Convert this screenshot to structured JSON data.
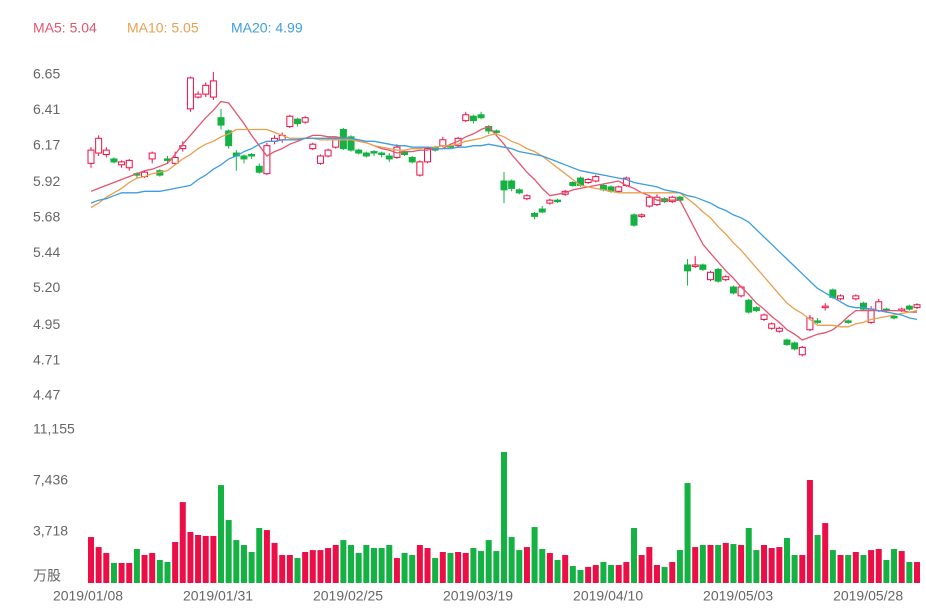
{
  "chart_data": {
    "type": "candlestick",
    "up_color": "#ec0f47",
    "down_color": "#14b143",
    "categories": [
      "2019/01/08",
      null,
      null,
      null,
      null,
      null,
      null,
      null,
      null,
      null,
      null,
      null,
      null,
      null,
      null,
      null,
      null,
      "2019/01/31",
      null,
      null,
      null,
      null,
      null,
      null,
      null,
      null,
      null,
      null,
      null,
      null,
      null,
      null,
      null,
      null,
      "2019/02/25",
      null,
      null,
      null,
      null,
      null,
      null,
      null,
      null,
      null,
      null,
      null,
      null,
      null,
      null,
      null,
      null,
      "2019/03/19",
      null,
      null,
      null,
      null,
      null,
      null,
      null,
      null,
      null,
      null,
      null,
      null,
      null,
      null,
      null,
      null,
      "2019/04/10",
      null,
      null,
      null,
      null,
      null,
      null,
      null,
      null,
      null,
      null,
      null,
      null,
      null,
      null,
      null,
      null,
      "2019/05/03",
      null,
      null,
      null,
      null,
      null,
      null,
      null,
      null,
      null,
      null,
      null,
      null,
      null,
      null,
      null,
      null,
      "2019/05/28",
      null,
      null,
      null,
      null,
      null,
      null
    ],
    "open": [
      6.05,
      6.12,
      6.11,
      6.08,
      6.04,
      6.02,
      5.98,
      5.96,
      6.08,
      6.0,
      6.08,
      6.05,
      6.15,
      6.42,
      6.5,
      6.52,
      6.5,
      6.36,
      6.27,
      6.12,
      6.1,
      6.11,
      6.03,
      5.98,
      6.2,
      6.21,
      6.3,
      6.35,
      6.33,
      6.15,
      6.05,
      6.1,
      6.16,
      6.28,
      6.23,
      6.14,
      6.12,
      6.13,
      6.12,
      6.1,
      6.09,
      6.13,
      6.09,
      5.97,
      6.06,
      6.16,
      6.17,
      6.17,
      6.17,
      6.34,
      6.37,
      6.38,
      6.3,
      6.27,
      5.93,
      5.93,
      5.87,
      5.81,
      5.71,
      5.74,
      5.78,
      5.8,
      5.84,
      5.92,
      5.95,
      5.92,
      5.93,
      5.9,
      5.89,
      5.86,
      5.9,
      5.7,
      5.69,
      5.76,
      5.77,
      5.81,
      5.79,
      5.82,
      5.36,
      5.35,
      5.36,
      5.26,
      5.33,
      5.26,
      5.21,
      5.15,
      5.12,
      5.07,
      4.99,
      4.93,
      4.91,
      4.85,
      4.83,
      4.75,
      4.92,
      4.98,
      5.07,
      5.19,
      5.13,
      4.98,
      5.13,
      5.1,
      4.97,
      5.05,
      5.06,
      5.01,
      5.05,
      5.08,
      5.07
    ],
    "high": [
      6.16,
      6.24,
      6.16,
      6.09,
      6.07,
      6.08,
      5.99,
      6.0,
      6.13,
      6.01,
      6.1,
      6.13,
      6.2,
      6.64,
      6.54,
      6.6,
      6.67,
      6.42,
      6.28,
      6.14,
      6.11,
      6.12,
      6.05,
      6.19,
      6.24,
      6.26,
      6.38,
      6.36,
      6.37,
      6.19,
      6.11,
      6.15,
      6.22,
      6.29,
      6.24,
      6.15,
      6.13,
      6.14,
      6.13,
      6.12,
      6.18,
      6.14,
      6.1,
      6.07,
      6.16,
      6.17,
      6.23,
      6.18,
      6.23,
      6.4,
      6.38,
      6.4,
      6.31,
      6.28,
      5.99,
      5.94,
      5.88,
      5.84,
      5.72,
      5.76,
      5.81,
      5.81,
      5.87,
      5.93,
      5.96,
      5.95,
      5.97,
      5.91,
      5.9,
      5.9,
      5.96,
      5.71,
      5.71,
      5.83,
      5.84,
      5.82,
      5.83,
      5.83,
      5.4,
      5.42,
      5.37,
      5.32,
      5.34,
      5.29,
      5.22,
      5.22,
      5.13,
      5.08,
      5.03,
      4.97,
      4.94,
      4.86,
      4.84,
      4.81,
      5.02,
      5.0,
      5.1,
      5.2,
      5.16,
      4.99,
      5.16,
      5.11,
      5.08,
      5.13,
      5.07,
      5.02,
      5.07,
      5.09,
      5.1
    ],
    "low": [
      6.02,
      6.1,
      6.09,
      6.05,
      6.02,
      6.0,
      5.95,
      5.95,
      6.05,
      5.96,
      6.05,
      6.04,
      6.13,
      6.4,
      6.49,
      6.5,
      6.48,
      6.28,
      6.15,
      6.0,
      6.05,
      6.08,
      5.98,
      5.97,
      6.18,
      6.19,
      6.29,
      6.3,
      6.32,
      6.14,
      6.04,
      6.09,
      6.15,
      6.14,
      6.13,
      6.11,
      6.09,
      6.1,
      6.09,
      6.06,
      6.08,
      6.1,
      6.05,
      5.96,
      6.05,
      6.13,
      6.16,
      6.15,
      6.16,
      6.33,
      6.32,
      6.35,
      6.25,
      6.25,
      5.78,
      5.86,
      5.84,
      5.8,
      5.67,
      5.71,
      5.77,
      5.78,
      5.83,
      5.89,
      5.89,
      5.91,
      5.92,
      5.86,
      5.85,
      5.85,
      5.89,
      5.62,
      5.68,
      5.75,
      5.76,
      5.78,
      5.78,
      5.79,
      5.22,
      5.34,
      5.32,
      5.25,
      5.24,
      5.25,
      5.16,
      5.14,
      5.03,
      5.04,
      4.98,
      4.92,
      4.9,
      4.81,
      4.78,
      4.74,
      4.91,
      4.96,
      5.05,
      5.13,
      5.12,
      4.96,
      5.12,
      5.05,
      4.96,
      5.04,
      5.04,
      4.99,
      5.04,
      5.05,
      5.06
    ],
    "close": [
      6.14,
      6.22,
      6.14,
      6.06,
      6.06,
      6.07,
      5.97,
      5.99,
      6.12,
      5.97,
      6.07,
      6.09,
      6.17,
      6.63,
      6.52,
      6.58,
      6.61,
      6.31,
      6.17,
      6.1,
      6.08,
      6.1,
      5.99,
      6.17,
      6.22,
      6.24,
      6.37,
      6.32,
      6.36,
      6.18,
      6.1,
      6.14,
      6.21,
      6.15,
      6.14,
      6.12,
      6.1,
      6.12,
      6.11,
      6.08,
      6.16,
      6.11,
      6.06,
      6.06,
      6.15,
      6.14,
      6.21,
      6.16,
      6.22,
      6.38,
      6.34,
      6.36,
      6.27,
      6.26,
      5.87,
      5.88,
      5.85,
      5.83,
      5.69,
      5.72,
      5.8,
      5.79,
      5.86,
      5.9,
      5.9,
      5.94,
      5.96,
      5.87,
      5.86,
      5.89,
      5.95,
      5.63,
      5.7,
      5.82,
      5.82,
      5.79,
      5.82,
      5.8,
      5.32,
      5.36,
      5.33,
      5.31,
      5.25,
      5.28,
      5.17,
      5.21,
      5.04,
      5.05,
      5.02,
      4.96,
      4.93,
      4.82,
      4.79,
      4.8,
      5.0,
      4.97,
      5.08,
      5.14,
      5.15,
      4.97,
      5.15,
      5.06,
      5.06,
      5.11,
      5.05,
      5.0,
      5.06,
      5.06,
      5.09
    ],
    "series": [
      {
        "name": "MA5: 5.04",
        "color": "#e5546d",
        "values": [
          5.86,
          5.88,
          5.9,
          5.92,
          5.94,
          5.96,
          5.98,
          6.0,
          6.01,
          6.03,
          6.05,
          6.11,
          6.18,
          6.24,
          6.3,
          6.36,
          6.41,
          6.47,
          6.46,
          6.39,
          6.32,
          6.24,
          6.17,
          6.1,
          6.13,
          6.15,
          6.18,
          6.2,
          6.22,
          6.24,
          6.24,
          6.23,
          6.23,
          6.22,
          6.22,
          6.2,
          6.19,
          6.17,
          6.15,
          6.14,
          6.12,
          6.13,
          6.13,
          6.14,
          6.14,
          6.15,
          6.15,
          6.18,
          6.2,
          6.23,
          6.25,
          6.28,
          6.3,
          6.24,
          6.18,
          6.11,
          6.05,
          5.99,
          5.94,
          5.88,
          5.83,
          5.84,
          5.85,
          5.87,
          5.88,
          5.89,
          5.9,
          5.91,
          5.92,
          5.93,
          5.9,
          5.88,
          5.85,
          5.83,
          5.8,
          5.8,
          5.8,
          5.8,
          5.7,
          5.6,
          5.5,
          5.44,
          5.38,
          5.32,
          5.27,
          5.21,
          5.16,
          5.1,
          5.06,
          5.01,
          4.97,
          4.92,
          4.89,
          4.85,
          4.87,
          4.89,
          4.9,
          4.92,
          4.96,
          5.01,
          5.05,
          5.05,
          5.05,
          5.05,
          5.05,
          5.05,
          5.05,
          5.04,
          5.04
        ]
      },
      {
        "name": "MA10: 5.05",
        "color": "#e9a04f",
        "values": [
          5.75,
          5.78,
          5.82,
          5.85,
          5.88,
          5.92,
          5.95,
          5.96,
          5.98,
          5.99,
          6.0,
          6.04,
          6.08,
          6.11,
          6.15,
          6.18,
          6.2,
          6.23,
          6.25,
          6.28,
          6.28,
          6.28,
          6.28,
          6.28,
          6.26,
          6.24,
          6.22,
          6.22,
          6.22,
          6.22,
          6.21,
          6.21,
          6.21,
          6.21,
          6.21,
          6.2,
          6.19,
          6.17,
          6.16,
          6.15,
          6.14,
          6.14,
          6.15,
          6.15,
          6.16,
          6.16,
          6.17,
          6.17,
          6.18,
          6.2,
          6.21,
          6.22,
          6.24,
          6.25,
          6.23,
          6.2,
          6.18,
          6.15,
          6.13,
          6.1,
          6.06,
          6.02,
          5.98,
          5.94,
          5.9,
          5.89,
          5.88,
          5.87,
          5.86,
          5.85,
          5.85,
          5.85,
          5.85,
          5.85,
          5.85,
          5.85,
          5.85,
          5.85,
          5.81,
          5.77,
          5.72,
          5.68,
          5.62,
          5.57,
          5.51,
          5.46,
          5.4,
          5.34,
          5.28,
          5.22,
          5.16,
          5.1,
          5.06,
          5.03,
          4.99,
          4.95,
          4.95,
          4.95,
          4.94,
          4.94,
          4.96,
          4.97,
          4.99,
          5.0,
          5.01,
          5.02,
          5.03,
          5.04,
          5.05
        ]
      },
      {
        "name": "MA20: 4.99",
        "color": "#3c9ee0",
        "values": [
          5.78,
          5.8,
          5.81,
          5.83,
          5.85,
          5.85,
          5.85,
          5.86,
          5.86,
          5.86,
          5.87,
          5.88,
          5.89,
          5.9,
          5.94,
          5.97,
          6.01,
          6.04,
          6.08,
          6.1,
          6.13,
          6.15,
          6.18,
          6.2,
          6.2,
          6.21,
          6.21,
          6.21,
          6.22,
          6.22,
          6.22,
          6.22,
          6.22,
          6.22,
          6.22,
          6.21,
          6.2,
          6.2,
          6.19,
          6.18,
          6.17,
          6.17,
          6.16,
          6.16,
          6.16,
          6.15,
          6.15,
          6.15,
          6.16,
          6.16,
          6.17,
          6.17,
          6.18,
          6.17,
          6.16,
          6.15,
          6.13,
          6.12,
          6.11,
          6.1,
          6.08,
          6.06,
          6.04,
          6.02,
          6.0,
          5.99,
          5.98,
          5.97,
          5.96,
          5.95,
          5.94,
          5.92,
          5.91,
          5.9,
          5.89,
          5.87,
          5.86,
          5.85,
          5.83,
          5.82,
          5.8,
          5.78,
          5.75,
          5.73,
          5.7,
          5.68,
          5.65,
          5.6,
          5.55,
          5.5,
          5.45,
          5.4,
          5.35,
          5.3,
          5.25,
          5.2,
          5.17,
          5.14,
          5.11,
          5.08,
          5.07,
          5.07,
          5.06,
          5.05,
          5.04,
          5.03,
          5.02,
          5.0,
          4.99
        ]
      }
    ],
    "ylim": [
      4.47,
      6.65
    ],
    "yticks": [
      6.65,
      6.41,
      6.17,
      5.92,
      5.68,
      5.44,
      {
        "value": 5.2,
        "label": "5.20"
      },
      4.95,
      4.71,
      4.47
    ],
    "volume": {
      "type": "bar",
      "values": [
        3350,
        2620,
        2190,
        1460,
        1460,
        1460,
        2480,
        2040,
        2190,
        1680,
        1530,
        2990,
        5900,
        3720,
        3500,
        3430,
        3430,
        7140,
        4590,
        3130,
        2770,
        2260,
        4010,
        3860,
        2920,
        2040,
        2040,
        1820,
        2260,
        2400,
        2400,
        2550,
        2770,
        3130,
        2770,
        2190,
        2770,
        2550,
        2550,
        2770,
        1820,
        2190,
        2040,
        2770,
        2550,
        1820,
        2260,
        2190,
        2260,
        2190,
        2550,
        2330,
        3130,
        2330,
        9550,
        3350,
        2400,
        2620,
        4080,
        2480,
        2190,
        1680,
        2040,
        1240,
        950,
        1170,
        1310,
        1530,
        1310,
        1310,
        1530,
        4010,
        2040,
        2620,
        1310,
        1170,
        1530,
        2400,
        7290,
        2620,
        2770,
        2770,
        2770,
        2920,
        2840,
        2770,
        4010,
        2400,
        2770,
        2550,
        2620,
        3280,
        2040,
        2040,
        7510,
        3500,
        4370,
        2400,
        2040,
        2040,
        2260,
        2040,
        2400,
        2480,
        1680,
        2480,
        2330,
        1530,
        1530
      ],
      "ylim": [
        0,
        11155
      ],
      "yticks": [
        {
          "value": 11155,
          "label": "11,155"
        },
        {
          "value": 7436,
          "label": "7,436"
        },
        {
          "value": 3718,
          "label": "3,718"
        },
        {
          "value": 0,
          "label": "万股"
        }
      ]
    }
  }
}
